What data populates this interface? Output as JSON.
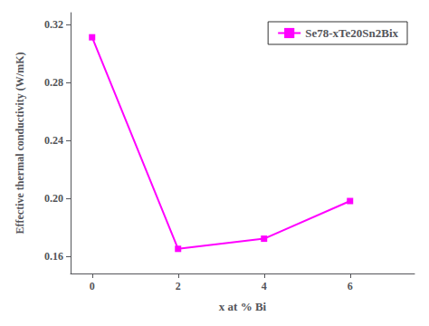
{
  "chart_data": {
    "type": "line",
    "x": [
      0,
      2,
      4,
      6
    ],
    "series": [
      {
        "name": "Se78-xTe20Sn2Bix",
        "color": "#FF00FF",
        "marker": "square",
        "values": [
          0.311,
          0.165,
          0.172,
          0.198
        ]
      }
    ],
    "xlabel": "x at % Bi",
    "ylabel": "Effective thermal conductivity (W/mK)",
    "xlim": [
      -0.5,
      7.5
    ],
    "ylim": [
      0.148,
      0.328
    ],
    "xticks": [
      0,
      2,
      4,
      6
    ],
    "yticks": [
      0.16,
      {
        "value": 0.2,
        "label": "0.20"
      },
      0.24,
      0.28,
      0.32
    ],
    "grid": false,
    "legend": "upper right"
  }
}
